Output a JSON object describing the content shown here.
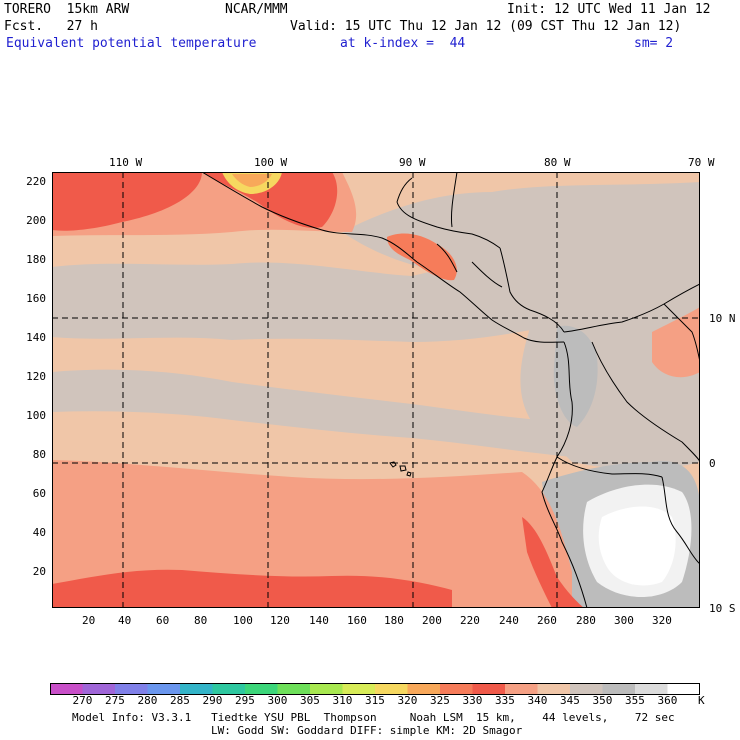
{
  "header": {
    "model": "TORERO  15km ARW",
    "center": "NCAR/MMM",
    "init": "Init: 12 UTC Wed 11 Jan 12",
    "fcst": "Fcst.   27 h",
    "valid": "Valid: 15 UTC Thu 12 Jan 12 (09 CST Thu 12 Jan 12)",
    "field": "Equivalent potential temperature",
    "level": "at k-index =  44",
    "smooth": "sm= 2"
  },
  "axes": {
    "lon_labels": [
      "110 W",
      "100 W",
      "90 W",
      "80 W",
      "70 W"
    ],
    "lat_labels": [
      "10 N",
      "0",
      "10 S"
    ],
    "x_ticks": [
      "20",
      "40",
      "60",
      "80",
      "100",
      "120",
      "140",
      "160",
      "180",
      "200",
      "220",
      "240",
      "260",
      "280",
      "300",
      "320"
    ],
    "y_ticks": [
      "220",
      "200",
      "180",
      "160",
      "140",
      "120",
      "100",
      "80",
      "60",
      "40",
      "20"
    ]
  },
  "colorbar": {
    "unit": "K",
    "levels": [
      "270",
      "275",
      "280",
      "285",
      "290",
      "295",
      "300",
      "305",
      "310",
      "315",
      "320",
      "325",
      "330",
      "335",
      "340",
      "345",
      "350",
      "355",
      "360"
    ],
    "colors": [
      "#c84fc8",
      "#a066d8",
      "#8080e8",
      "#6a96ee",
      "#33b4c8",
      "#2ec8a0",
      "#3cd67a",
      "#6ee05a",
      "#a8e850",
      "#d8ec58",
      "#f6d860",
      "#f8a85a",
      "#f67c5a",
      "#f05a4a",
      "#f5a084",
      "#f0c6a8",
      "#d0c4bc",
      "#bcbcbc",
      "#dcdcdc",
      "#ffffff"
    ]
  },
  "footer": {
    "line1": "Model Info: V3.3.1   Tiedtke YSU PBL  Thompson     Noah LSM  15 km,    44 levels,    72 sec",
    "line2": "LW: Godd SW: Goddard DIFF: simple KM: 2D Smagor"
  }
}
